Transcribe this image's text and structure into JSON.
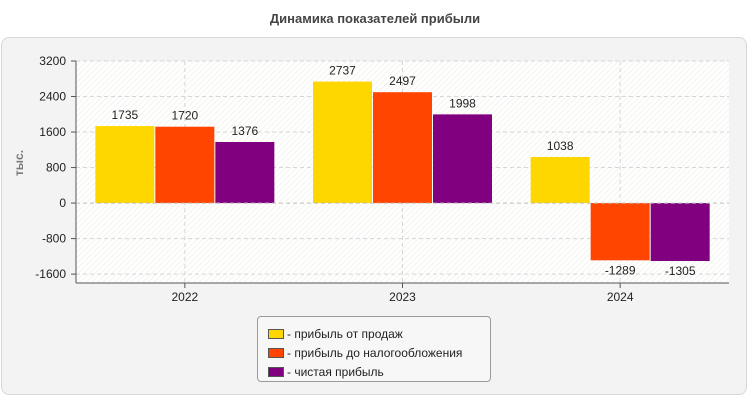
{
  "chart_data": {
    "type": "bar",
    "title": "Динамика показателей прибыли",
    "ylabel": "тыс.",
    "xlabel": "",
    "categories": [
      "2022",
      "2023",
      "2024"
    ],
    "ylim": [
      -1800,
      3200
    ],
    "yticks": [
      3200,
      2400,
      1600,
      800,
      0,
      -800,
      -1600
    ],
    "grid": true,
    "legend_position": "bottom",
    "series": [
      {
        "name": "- прибыль от продаж",
        "color": "#ffd700",
        "values": [
          1735,
          2737,
          1038
        ]
      },
      {
        "name": "- прибыль до налогообложения",
        "color": "#ff4500",
        "values": [
          1720,
          2497,
          -1289
        ]
      },
      {
        "name": "- чистая прибыль",
        "color": "#800080",
        "values": [
          1376,
          1998,
          -1305
        ]
      }
    ]
  }
}
